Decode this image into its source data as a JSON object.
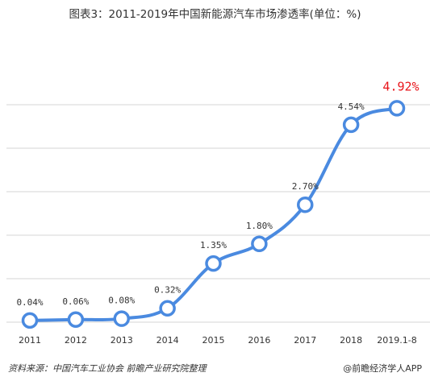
{
  "title": "图表3：2011-2019年中国新能源汽车市场渗透率(单位：%)",
  "footer": {
    "source": "资料来源：中国汽车工业协会 前瞻产业研究院整理",
    "brand": "@前瞻经济学人APP"
  },
  "colors": {
    "line": "#4a8ae0",
    "marker_fill": "#ffffff",
    "grid": "#d4d4d4",
    "highlight": "#e8141a"
  },
  "chart_data": {
    "type": "line",
    "title": "图表3：2011-2019年中国新能源汽车市场渗透率(单位：%)",
    "xlabel": "",
    "ylabel": "",
    "categories": [
      "2011",
      "2012",
      "2013",
      "2014",
      "2015",
      "2016",
      "2017",
      "2018",
      "2019.1-8"
    ],
    "series": [
      {
        "values": [
          0.04,
          0.06,
          0.08,
          0.32,
          1.35,
          1.8,
          2.7,
          4.54,
          4.92
        ]
      }
    ],
    "data_labels": [
      "0.04%",
      "0.06%",
      "0.08%",
      "0.32%",
      "1.35%",
      "1.80%",
      "2.70%",
      "4.54%",
      "4.92%"
    ],
    "highlight_index": 8,
    "ylim": [
      0,
      5
    ],
    "y_tick_labels_shown": false,
    "grid": true,
    "smooth": true,
    "legend": "none"
  }
}
